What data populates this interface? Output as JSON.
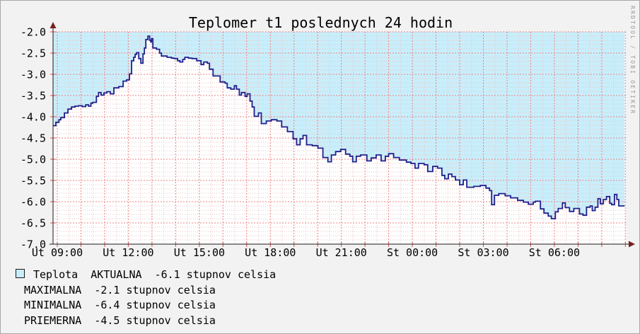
{
  "window": {
    "background": "#f2f2f2",
    "border_color": "#a8a8a8"
  },
  "watermark": "RRDTOOL / TOBI OETIKER",
  "legend": {
    "swatch_color": "#c9eefb",
    "lines": [
      "Teplota  AKTUALNA  -6.1 stupnov celsia",
      "MAXIMALNA  -2.1 stupnov celsia",
      "MINIMALNA  -6.4 stupnov celsia",
      "PRIEMERNA  -4.5 stupnov celsia"
    ]
  },
  "chart_data": {
    "type": "area",
    "title": "Teplomer t1 poslednych 24 hodin",
    "series_name": "Teplota",
    "unit": "stupnov celsia",
    "stats": {
      "aktualna": -6.1,
      "maximalna": -2.1,
      "minimalna": -6.4,
      "priemerna": -4.5
    },
    "ylim": [
      -7.0,
      -2.0
    ],
    "y_tick_labels": [
      "-2.0",
      "-2.5",
      "-3.0",
      "-3.5",
      "-4.0",
      "-4.5",
      "-5.0",
      "-5.5",
      "-6.0",
      "-6.5",
      "-7.0"
    ],
    "span_hours": 24.2,
    "x_axis": {
      "first_hour_offset": 0.18,
      "hour_gridlines": true,
      "half_hour_minor_gridlines": true,
      "ticks": [
        {
          "label": "Ut 09:00",
          "t": 0.18
        },
        {
          "label": "Ut 12:00",
          "t": 3.18
        },
        {
          "label": "Ut 15:00",
          "t": 6.18
        },
        {
          "label": "Ut 18:00",
          "t": 9.18
        },
        {
          "label": "Ut 21:00",
          "t": 12.18
        },
        {
          "label": "St 00:00",
          "t": 15.18
        },
        {
          "label": "St 03:00",
          "t": 18.18
        },
        {
          "label": "St 06:00",
          "t": 21.18
        }
      ]
    },
    "colors": {
      "plot_bg": "#ffffff",
      "area_fill": "#c9eefb",
      "line": "#20208c",
      "grid_major": "#ef8181",
      "grid_minor": "#e8c2c2",
      "tick_red": "#d95050",
      "axis": "#1a1a1a",
      "arrow": "#772222"
    },
    "points": [
      [
        0,
        -4.21
      ],
      [
        0.12,
        -4.13
      ],
      [
        0.25,
        -4.07
      ],
      [
        0.33,
        -4.02
      ],
      [
        0.48,
        -3.91
      ],
      [
        0.63,
        -3.82
      ],
      [
        0.78,
        -3.77
      ],
      [
        0.93,
        -3.75
      ],
      [
        1.08,
        -3.74
      ],
      [
        1.23,
        -3.76
      ],
      [
        1.38,
        -3.72
      ],
      [
        1.5,
        -3.75
      ],
      [
        1.6,
        -3.68
      ],
      [
        1.68,
        -3.66
      ],
      [
        1.83,
        -3.52
      ],
      [
        1.92,
        -3.43
      ],
      [
        2.03,
        -3.49
      ],
      [
        2.15,
        -3.44
      ],
      [
        2.27,
        -3.41
      ],
      [
        2.42,
        -3.46
      ],
      [
        2.57,
        -3.32
      ],
      [
        2.78,
        -3.29
      ],
      [
        2.96,
        -3.16
      ],
      [
        3.11,
        -3.13
      ],
      [
        3.23,
        -2.99
      ],
      [
        3.32,
        -2.68
      ],
      [
        3.41,
        -2.6
      ],
      [
        3.47,
        -2.53
      ],
      [
        3.53,
        -2.49
      ],
      [
        3.62,
        -2.63
      ],
      [
        3.71,
        -2.74
      ],
      [
        3.8,
        -2.52
      ],
      [
        3.86,
        -2.38
      ],
      [
        3.92,
        -2.18
      ],
      [
        4.01,
        -2.1
      ],
      [
        4.08,
        -2.2
      ],
      [
        4.13,
        -2.24
      ],
      [
        4.16,
        -2.16
      ],
      [
        4.22,
        -2.38
      ],
      [
        4.37,
        -2.41
      ],
      [
        4.5,
        -2.5
      ],
      [
        4.58,
        -2.57
      ],
      [
        4.82,
        -2.6
      ],
      [
        5,
        -2.62
      ],
      [
        5.12,
        -2.63
      ],
      [
        5.26,
        -2.68
      ],
      [
        5.36,
        -2.71
      ],
      [
        5.48,
        -2.65
      ],
      [
        5.57,
        -2.6
      ],
      [
        5.72,
        -2.62
      ],
      [
        5.87,
        -2.63
      ],
      [
        6.07,
        -2.68
      ],
      [
        6.25,
        -2.77
      ],
      [
        6.37,
        -2.71
      ],
      [
        6.52,
        -2.74
      ],
      [
        6.61,
        -2.88
      ],
      [
        6.76,
        -3.04
      ],
      [
        6.91,
        -3.04
      ],
      [
        7.06,
        -3.18
      ],
      [
        7.27,
        -3.21
      ],
      [
        7.36,
        -3.32
      ],
      [
        7.51,
        -3.35
      ],
      [
        7.66,
        -3.27
      ],
      [
        7.75,
        -3.35
      ],
      [
        7.87,
        -3.49
      ],
      [
        7.96,
        -3.43
      ],
      [
        8.11,
        -3.52
      ],
      [
        8.2,
        -3.46
      ],
      [
        8.32,
        -3.63
      ],
      [
        8.41,
        -3.77
      ],
      [
        8.5,
        -3.99
      ],
      [
        8.62,
        -3.99
      ],
      [
        8.68,
        -3.91
      ],
      [
        8.8,
        -4.16
      ],
      [
        9.01,
        -4.1
      ],
      [
        9.22,
        -4.07
      ],
      [
        9.46,
        -4.1
      ],
      [
        9.66,
        -4.24
      ],
      [
        9.9,
        -4.35
      ],
      [
        10.14,
        -4.52
      ],
      [
        10.29,
        -4.66
      ],
      [
        10.44,
        -4.52
      ],
      [
        10.56,
        -4.44
      ],
      [
        10.71,
        -4.66
      ],
      [
        10.95,
        -4.68
      ],
      [
        11.19,
        -4.74
      ],
      [
        11.4,
        -4.96
      ],
      [
        11.61,
        -5.06
      ],
      [
        11.76,
        -4.9
      ],
      [
        11.94,
        -4.82
      ],
      [
        12.15,
        -4.77
      ],
      [
        12.36,
        -4.88
      ],
      [
        12.54,
        -4.93
      ],
      [
        12.66,
        -5.06
      ],
      [
        12.81,
        -4.93
      ],
      [
        12.99,
        -4.9
      ],
      [
        13.26,
        -5.04
      ],
      [
        13.44,
        -4.97
      ],
      [
        13.65,
        -4.9
      ],
      [
        13.86,
        -5.04
      ],
      [
        14.04,
        -4.93
      ],
      [
        14.18,
        -4.87
      ],
      [
        14.39,
        -4.96
      ],
      [
        14.63,
        -5.02
      ],
      [
        14.93,
        -5.07
      ],
      [
        15.12,
        -5.1
      ],
      [
        15.29,
        -5.21
      ],
      [
        15.44,
        -5.1
      ],
      [
        15.68,
        -5.13
      ],
      [
        15.83,
        -5.29
      ],
      [
        16.04,
        -5.17
      ],
      [
        16.25,
        -5.21
      ],
      [
        16.43,
        -5.38
      ],
      [
        16.55,
        -5.46
      ],
      [
        16.7,
        -5.35
      ],
      [
        16.85,
        -5.41
      ],
      [
        17,
        -5.49
      ],
      [
        17.18,
        -5.6
      ],
      [
        17.33,
        -5.49
      ],
      [
        17.48,
        -5.66
      ],
      [
        17.78,
        -5.64
      ],
      [
        18.05,
        -5.62
      ],
      [
        18.29,
        -5.68
      ],
      [
        18.44,
        -5.74
      ],
      [
        18.53,
        -6.07
      ],
      [
        18.65,
        -5.85
      ],
      [
        18.83,
        -5.81
      ],
      [
        19.1,
        -5.86
      ],
      [
        19.33,
        -5.91
      ],
      [
        19.63,
        -5.97
      ],
      [
        19.87,
        -6.01
      ],
      [
        20.08,
        -6.06
      ],
      [
        20.29,
        -6.01
      ],
      [
        20.38,
        -5.99
      ],
      [
        20.59,
        -6.17
      ],
      [
        20.74,
        -6.27
      ],
      [
        20.92,
        -6.34
      ],
      [
        21.05,
        -6.4
      ],
      [
        21.22,
        -6.24
      ],
      [
        21.34,
        -6.16
      ],
      [
        21.52,
        -6.03
      ],
      [
        21.64,
        -6.14
      ],
      [
        21.82,
        -6.23
      ],
      [
        22,
        -6.16
      ],
      [
        22.24,
        -6.29
      ],
      [
        22.39,
        -6.32
      ],
      [
        22.54,
        -6.13
      ],
      [
        22.69,
        -6.1
      ],
      [
        22.78,
        -6.21
      ],
      [
        22.9,
        -6.13
      ],
      [
        23.02,
        -5.93
      ],
      [
        23.12,
        -6.05
      ],
      [
        23.25,
        -5.95
      ],
      [
        23.38,
        -5.88
      ],
      [
        23.52,
        -6.04
      ],
      [
        23.6,
        -6.07
      ],
      [
        23.72,
        -5.83
      ],
      [
        23.82,
        -5.95
      ],
      [
        23.9,
        -6.1
      ],
      [
        24.15,
        -6.1
      ]
    ]
  }
}
